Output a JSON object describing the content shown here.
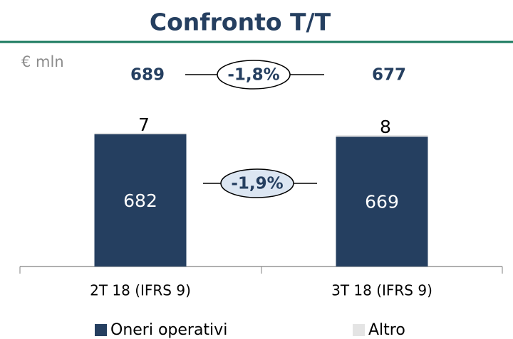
{
  "chart_data": {
    "type": "bar",
    "stacked": true,
    "title": "Confronto T/T",
    "unit": "€ mln",
    "categories": [
      "2T 18 (IFRS 9)",
      "3T 18 (IFRS 9)"
    ],
    "series": [
      {
        "name": "Oneri operativi",
        "color": "#253f60",
        "values": [
          682,
          669
        ]
      },
      {
        "name": "Altro",
        "color": "#e4e4e4",
        "values": [
          7,
          8
        ]
      }
    ],
    "totals": [
      689,
      677
    ],
    "annotations": [
      "-1,8%",
      "-1,9%"
    ]
  }
}
